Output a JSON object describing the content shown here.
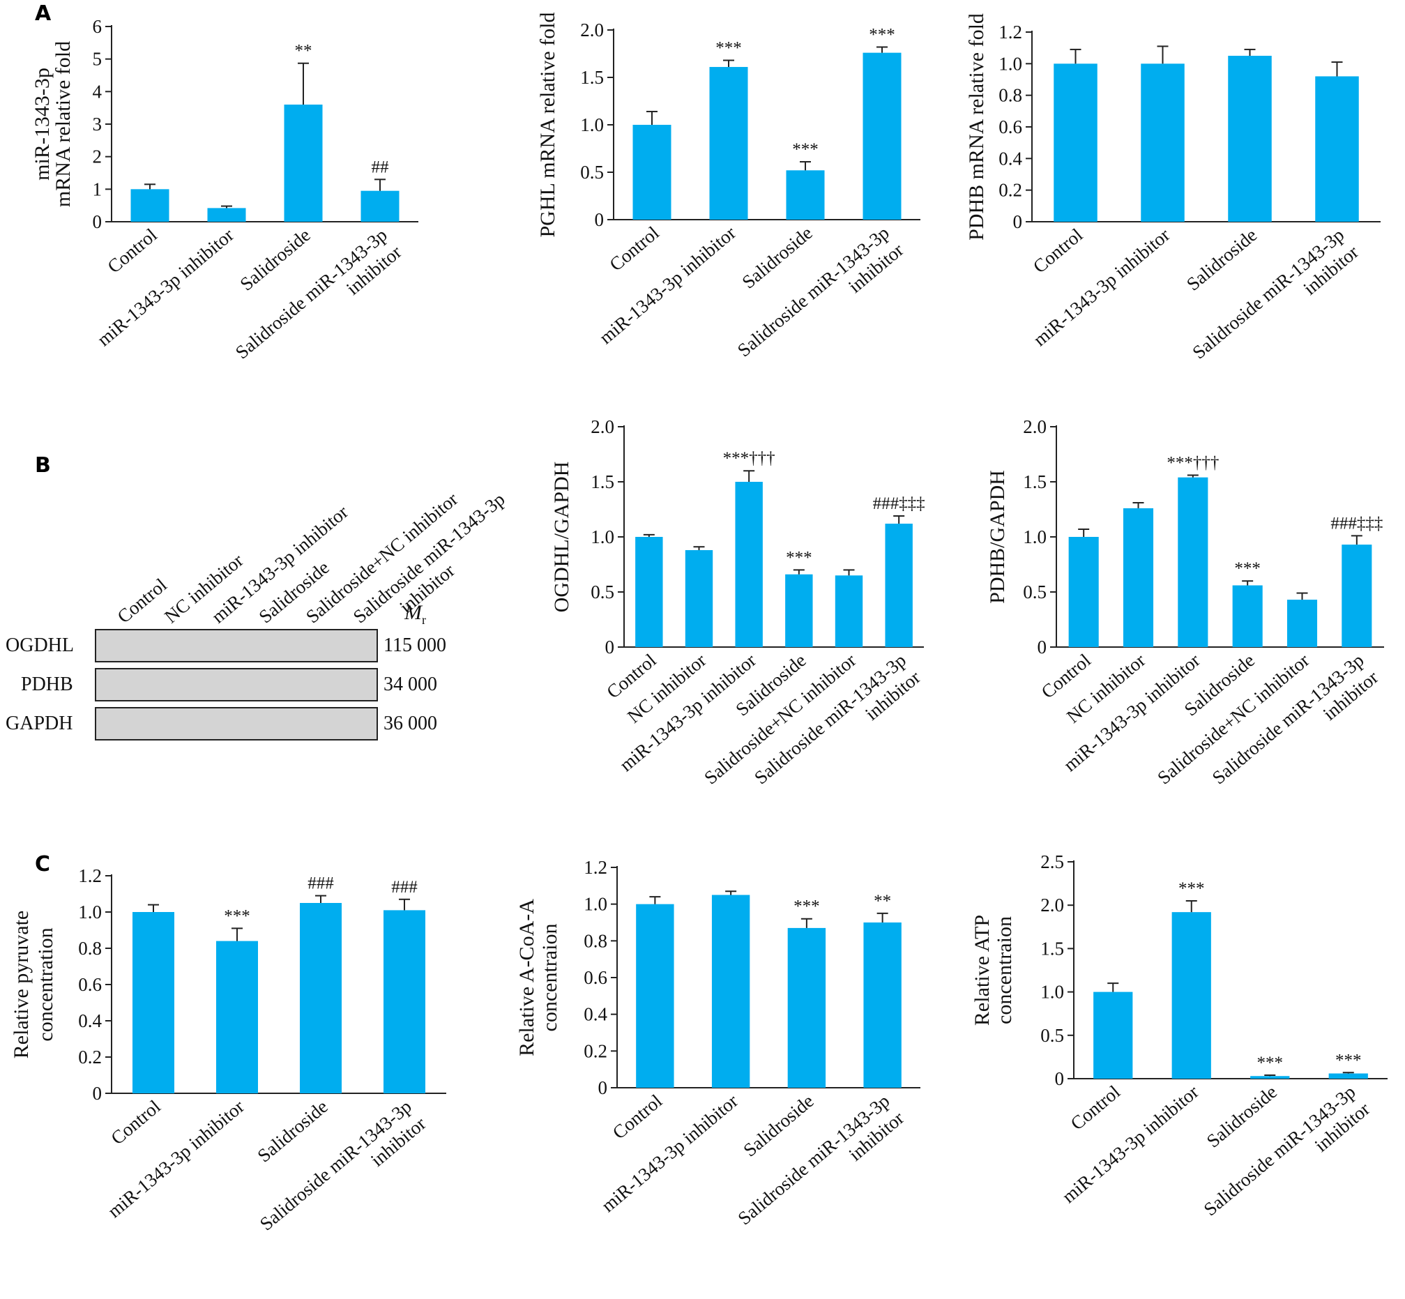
{
  "panel_labels": [
    "A",
    "B",
    "C"
  ],
  "colors": {
    "bar": "#00ADEF",
    "axis": "#222222",
    "text": "#111111"
  },
  "western_blot": {
    "lanes": [
      "Control",
      "NC inhibitor",
      "miR-1343-3p inhibitor",
      "Salidroside",
      "Salidroside+NC inhibitor",
      "Salidroside miR-1343-3p inhibitor"
    ],
    "mr_label": "M",
    "mr_sub": "r",
    "rows": [
      {
        "protein": "OGDHL",
        "mass": "115 000"
      },
      {
        "protein": "PDHB",
        "mass": "34 000"
      },
      {
        "protein": "GAPDH",
        "mass": "36 000"
      }
    ]
  },
  "chart_data": [
    {
      "id": "A1",
      "type": "bar",
      "ylabel_lines": [
        "miR-1343-3p",
        "mRNA relative fold"
      ],
      "ylim": [
        0,
        6
      ],
      "yticks": [
        "0",
        "1",
        "2",
        "3",
        "4",
        "5",
        "6"
      ],
      "categories": [
        "Control",
        "miR-1343-3p inhibitor",
        "Salidroside",
        "Salidroside miR-1343-3p|inhibitor"
      ],
      "values": [
        1.0,
        0.42,
        3.6,
        0.95
      ],
      "errors": [
        0.15,
        0.06,
        1.27,
        0.35
      ],
      "annotations": [
        "",
        "",
        "**",
        "##"
      ]
    },
    {
      "id": "A2",
      "type": "bar",
      "ylabel_lines": [
        "PGHL mRNA relative fold"
      ],
      "ylim": [
        0,
        2.0
      ],
      "yticks": [
        "0",
        "0.5",
        "1.0",
        "1.5",
        "2.0"
      ],
      "categories": [
        "Control",
        "miR-1343-3p inhibitor",
        "Salidroside",
        "Salidroside miR-1343-3p|inhibitor"
      ],
      "values": [
        1.0,
        1.61,
        0.52,
        1.76
      ],
      "errors": [
        0.14,
        0.07,
        0.09,
        0.06
      ],
      "annotations": [
        "",
        "***",
        "***",
        "***"
      ]
    },
    {
      "id": "A3",
      "type": "bar",
      "ylabel_lines": [
        "PDHB mRNA relative fold"
      ],
      "ylim": [
        0,
        1.2
      ],
      "yticks": [
        "0",
        "0.2",
        "0.4",
        "0.6",
        "0.8",
        "1.0",
        "1.2"
      ],
      "categories": [
        "Control",
        "miR-1343-3p inhibitor",
        "Salidroside",
        "Salidroside miR-1343-3p|inhibitor"
      ],
      "values": [
        1.0,
        1.0,
        1.05,
        0.92
      ],
      "errors": [
        0.09,
        0.11,
        0.04,
        0.09
      ],
      "annotations": [
        "",
        "",
        "",
        ""
      ]
    },
    {
      "id": "B2",
      "type": "bar",
      "ylabel_lines": [
        "OGDHL/GAPDH"
      ],
      "ylim": [
        0,
        2.0
      ],
      "yticks": [
        "0",
        "0.5",
        "1.0",
        "1.5",
        "2.0"
      ],
      "categories": [
        "Control",
        "NC inhibitor",
        "miR-1343-3p inhibitor",
        "Salidroside",
        "Salidroside+NC inhibitor",
        "Salidroside miR-1343-3p|inhibitor"
      ],
      "values": [
        1.0,
        0.88,
        1.5,
        0.66,
        0.65,
        1.12
      ],
      "errors": [
        0.02,
        0.03,
        0.1,
        0.04,
        0.05,
        0.07
      ],
      "annotations": [
        "",
        "",
        "***†††",
        "***",
        "",
        "###‡‡‡"
      ]
    },
    {
      "id": "B3",
      "type": "bar",
      "ylabel_lines": [
        "PDHB/GAPDH"
      ],
      "ylim": [
        0,
        2.0
      ],
      "yticks": [
        "0",
        "0.5",
        "1.0",
        "1.5",
        "2.0"
      ],
      "categories": [
        "Control",
        "NC inhibitor",
        "miR-1343-3p inhibitor",
        "Salidroside",
        "Salidroside+NC inhibitor",
        "Salidroside miR-1343-3p|inhibitor"
      ],
      "values": [
        1.0,
        1.26,
        1.54,
        0.56,
        0.43,
        0.93
      ],
      "errors": [
        0.07,
        0.05,
        0.02,
        0.04,
        0.06,
        0.08
      ],
      "annotations": [
        "",
        "",
        "***†††",
        "***",
        "",
        "###‡‡‡"
      ]
    },
    {
      "id": "C1",
      "type": "bar",
      "ylabel_lines": [
        "Relative pyruvate",
        "concentration"
      ],
      "ylim": [
        0,
        1.2
      ],
      "yticks": [
        "0",
        "0.2",
        "0.4",
        "0.6",
        "0.8",
        "1.0",
        "1.2"
      ],
      "categories": [
        "Control",
        "miR-1343-3p inhibitor",
        "Salidroside",
        "Salidroside miR-1343-3p|inhibitor"
      ],
      "values": [
        1.0,
        0.84,
        1.05,
        1.01
      ],
      "errors": [
        0.04,
        0.07,
        0.04,
        0.06
      ],
      "annotations": [
        "",
        "***",
        "###",
        "###"
      ]
    },
    {
      "id": "C2",
      "type": "bar",
      "ylabel_lines": [
        "Relative A-CoA-A",
        "concentraion"
      ],
      "ylim": [
        0,
        1.2
      ],
      "yticks": [
        "0",
        "0.2",
        "0.4",
        "0.6",
        "0.8",
        "1.0",
        "1.2"
      ],
      "categories": [
        "Control",
        "miR-1343-3p inhibitor",
        "Salidroside",
        "Salidroside miR-1343-3p|inhibitor"
      ],
      "values": [
        1.0,
        1.05,
        0.87,
        0.9
      ],
      "errors": [
        0.04,
        0.02,
        0.05,
        0.05
      ],
      "annotations": [
        "",
        "",
        "***",
        "**"
      ]
    },
    {
      "id": "C3",
      "type": "bar",
      "ylabel_lines": [
        "Relative ATP",
        "concentraion"
      ],
      "ylim": [
        0,
        2.5
      ],
      "yticks": [
        "0",
        "0.5",
        "1.0",
        "1.5",
        "2.0",
        "2.5"
      ],
      "categories": [
        "Control",
        "miR-1343-3p inhibitor",
        "Salidroside",
        "Salidroside miR-1343-3p|inhibitor"
      ],
      "values": [
        1.0,
        1.92,
        0.03,
        0.06
      ],
      "errors": [
        0.1,
        0.13,
        0.01,
        0.01
      ],
      "annotations": [
        "",
        "***",
        "***",
        "***"
      ]
    }
  ]
}
